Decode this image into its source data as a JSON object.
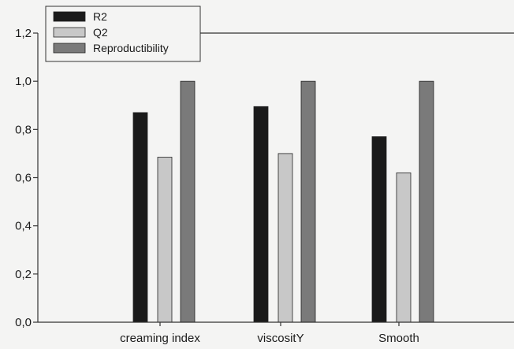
{
  "chart_data": {
    "type": "bar",
    "categories": [
      "creaming index",
      "viscositY",
      "Smooth"
    ],
    "series": [
      {
        "name": "R2",
        "values": [
          0.87,
          0.895,
          0.77
        ],
        "color": "#1a1a1a"
      },
      {
        "name": "Q2",
        "values": [
          0.685,
          0.7,
          0.62
        ],
        "color": "#c8c8c8"
      },
      {
        "name": "Reproductibility",
        "values": [
          1.0,
          1.0,
          1.0
        ],
        "color": "#7a7a7a"
      }
    ],
    "yticks": [
      "0,0",
      "0,2",
      "0,4",
      "0,6",
      "0,8",
      "1,0",
      "1,2"
    ],
    "ylim": [
      0,
      1.2
    ],
    "grid": false,
    "legend_position": "top-left"
  }
}
